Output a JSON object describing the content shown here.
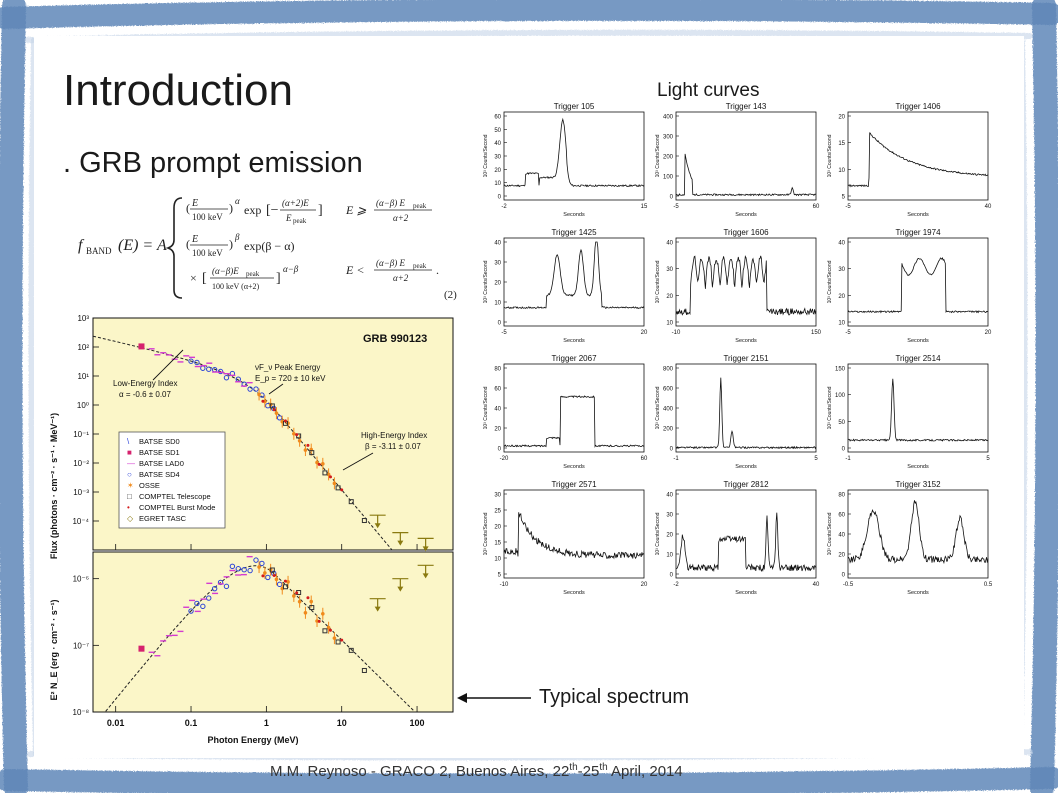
{
  "slide": {
    "title": "Introduction",
    "subtitle": ". GRB prompt emission",
    "light_curves_label": "Light curves",
    "spectrum_label": "Typical spectrum",
    "footer": {
      "text": "M.M. Reynoso - GRACO 2, Buenos Aires, 22",
      "sup1": "th",
      "mid": "-25",
      "sup2": "th",
      "end": " April, 2014"
    }
  },
  "equation": {
    "lhs": "f",
    "lhs_sub": "BAND",
    "lhs_arg": "(E) = A",
    "case1_cond": "E ⩾ (α−β) E_peak / (α+2)",
    "case2_cond": "E < (α−β) E_peak / (α+2).",
    "number": "(2)"
  },
  "spectrum_panel": {
    "title": "GRB 990123",
    "upper_ylabel": "Flux (photons · cm⁻² · s⁻¹ · MeV⁻¹)",
    "lower_ylabel": "E² N_E (erg · cm⁻² · s⁻¹)",
    "xlabel": "Photon Energy (MeV)",
    "x_ticks": [
      "0.01",
      "0.1",
      "1",
      "10",
      "100"
    ],
    "upper_y_ticks": [
      "10³",
      "10²",
      "10¹",
      "10⁰",
      "10⁻¹",
      "10⁻²",
      "10⁻³",
      "10⁻⁴"
    ],
    "lower_y_ticks": [
      "10⁻⁶",
      "10⁻⁷",
      "10⁻⁸"
    ],
    "annotations": {
      "low_index_1": "Low-Energy Index",
      "low_index_2": "α = -0.6 ± 0.07",
      "peak_1": "νF_ν Peak Energy",
      "peak_2": "E_p = 720 ± 10 keV",
      "high_index_1": "High-Energy Index",
      "high_index_2": "β = -3.11 ± 0.07"
    },
    "legend": [
      "BATSE SD0",
      "BATSE SD1",
      "BATSE LAD0",
      "BATSE SD4",
      "OSSE",
      "COMPTEL Telescope",
      "COMPTEL Burst Mode",
      "EGRET TASC"
    ],
    "colors": {
      "panel_bg": "#fbf6c8",
      "model_line": "#222222",
      "batse_sd1": "#d6226e",
      "batse_lad0": "#d43bd0",
      "batse_sd4": "#2c43d8",
      "osse": "#f08a1c",
      "comptel_tel": "#333333",
      "comptel_burst": "#d41b1b",
      "egret": "#8a7a10"
    }
  },
  "light_curves": {
    "xlabel": "Seconds",
    "ylabel": "10³ Counts/Second",
    "panels": [
      {
        "trigger": "Trigger 105",
        "x_ticks": [
          "-2",
          "5",
          "15"
        ],
        "y_ticks": [
          "60",
          "50",
          "40",
          "30",
          "20",
          "10",
          "0"
        ]
      },
      {
        "trigger": "Trigger 143",
        "x_ticks": [
          "-5",
          "0",
          "60"
        ],
        "y_ticks": [
          "400",
          "300",
          "200",
          "100",
          "0"
        ]
      },
      {
        "trigger": "Trigger 1406",
        "x_ticks": [
          "-5",
          "5",
          "40"
        ],
        "y_ticks": [
          "20",
          "15",
          "10",
          "5"
        ]
      },
      {
        "trigger": "Trigger 1425",
        "x_ticks": [
          "-5",
          "0",
          "20"
        ],
        "y_ticks": [
          "40",
          "30",
          "20",
          "10",
          "0"
        ]
      },
      {
        "trigger": "Trigger 1606",
        "x_ticks": [
          "-10",
          "0",
          "150"
        ],
        "y_ticks": [
          "40",
          "30",
          "20",
          "10"
        ]
      },
      {
        "trigger": "Trigger 1974",
        "x_ticks": [
          "-5",
          "0",
          "20"
        ],
        "y_ticks": [
          "40",
          "30",
          "20",
          "10"
        ]
      },
      {
        "trigger": "Trigger 2067",
        "x_ticks": [
          "-20",
          "0",
          "60"
        ],
        "y_ticks": [
          "80",
          "60",
          "40",
          "20",
          "0"
        ]
      },
      {
        "trigger": "Trigger 2151",
        "x_ticks": [
          "-1",
          "0",
          "5"
        ],
        "y_ticks": [
          "800",
          "600",
          "400",
          "200",
          "0"
        ]
      },
      {
        "trigger": "Trigger 2514",
        "x_ticks": [
          "-1",
          "0",
          "5"
        ],
        "y_ticks": [
          "150",
          "100",
          "50",
          "0"
        ]
      },
      {
        "trigger": "Trigger 2571",
        "x_ticks": [
          "-10",
          "0",
          "20"
        ],
        "y_ticks": [
          "30",
          "25",
          "20",
          "15",
          "10",
          "5"
        ]
      },
      {
        "trigger": "Trigger 2812",
        "x_ticks": [
          "-2",
          "0",
          "40"
        ],
        "y_ticks": [
          "40",
          "30",
          "20",
          "10",
          "0"
        ]
      },
      {
        "trigger": "Trigger 3152",
        "x_ticks": [
          "-0.5",
          "0",
          "0.5"
        ],
        "y_ticks": [
          "80",
          "60",
          "40",
          "20",
          "0"
        ]
      }
    ]
  }
}
